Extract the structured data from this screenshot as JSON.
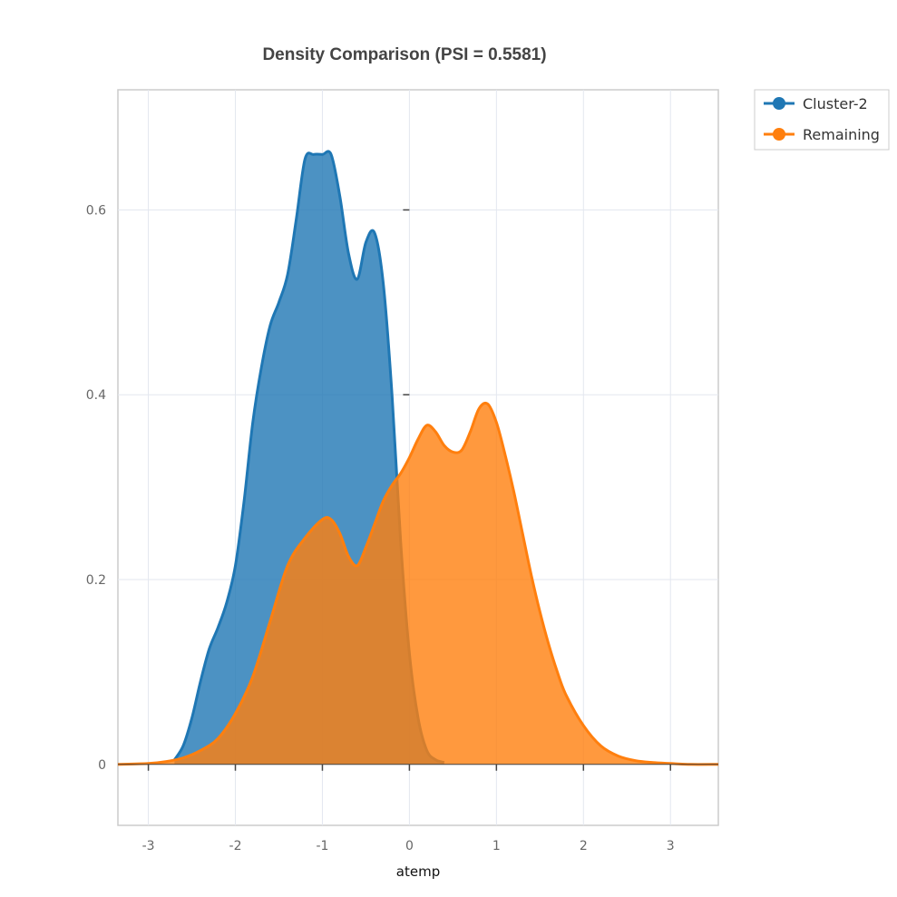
{
  "chart_data": {
    "type": "area",
    "title": "Density Comparison (PSI = 0.5581)",
    "xlabel": "atemp",
    "ylabel": "",
    "xlim": [
      -3.35,
      3.55
    ],
    "ylim": [
      -0.066,
      0.73
    ],
    "x_ticks": [
      -3,
      -2,
      -1,
      0,
      1,
      2,
      3
    ],
    "x_tick_labels": [
      "-3",
      "-2",
      "-1",
      "0",
      "1",
      "2",
      "3"
    ],
    "y_ticks": [
      0,
      0.2,
      0.4,
      0.6
    ],
    "y_tick_labels": [
      "0",
      "0.2",
      "0.4",
      "0.6"
    ],
    "grid": true,
    "legend_position": "outside-top-right",
    "series": [
      {
        "name": "Cluster-2",
        "color": "#1f77b4",
        "x": [
          -2.7,
          -2.6,
          -2.5,
          -2.4,
          -2.3,
          -2.2,
          -2.1,
          -2.0,
          -1.9,
          -1.8,
          -1.7,
          -1.6,
          -1.5,
          -1.4,
          -1.3,
          -1.2,
          -1.1,
          -1.0,
          -0.9,
          -0.8,
          -0.7,
          -0.6,
          -0.5,
          -0.4,
          -0.3,
          -0.2,
          -0.1,
          0.0,
          0.1,
          0.2,
          0.3,
          0.4
        ],
        "y": [
          0.005,
          0.02,
          0.05,
          0.09,
          0.125,
          0.148,
          0.175,
          0.215,
          0.285,
          0.37,
          0.43,
          0.475,
          0.5,
          0.53,
          0.59,
          0.655,
          0.66,
          0.66,
          0.66,
          0.615,
          0.553,
          0.525,
          0.565,
          0.575,
          0.52,
          0.4,
          0.24,
          0.12,
          0.05,
          0.015,
          0.005,
          0.002
        ]
      },
      {
        "name": "Remaining",
        "color": "#ff7f0e",
        "x": [
          -3.35,
          -3.0,
          -2.8,
          -2.6,
          -2.4,
          -2.2,
          -2.0,
          -1.8,
          -1.6,
          -1.4,
          -1.2,
          -1.0,
          -0.9,
          -0.8,
          -0.7,
          -0.6,
          -0.5,
          -0.4,
          -0.3,
          -0.2,
          -0.1,
          0.0,
          0.1,
          0.2,
          0.3,
          0.4,
          0.5,
          0.6,
          0.7,
          0.8,
          0.9,
          1.0,
          1.1,
          1.2,
          1.3,
          1.4,
          1.5,
          1.6,
          1.7,
          1.8,
          2.0,
          2.2,
          2.4,
          2.6,
          2.8,
          3.0,
          3.2,
          3.55
        ],
        "y": [
          0.0,
          0.001,
          0.003,
          0.007,
          0.015,
          0.028,
          0.055,
          0.095,
          0.155,
          0.215,
          0.245,
          0.265,
          0.265,
          0.25,
          0.225,
          0.215,
          0.235,
          0.26,
          0.285,
          0.302,
          0.315,
          0.332,
          0.352,
          0.367,
          0.36,
          0.345,
          0.338,
          0.34,
          0.36,
          0.385,
          0.39,
          0.37,
          0.335,
          0.295,
          0.25,
          0.205,
          0.165,
          0.13,
          0.1,
          0.075,
          0.042,
          0.02,
          0.009,
          0.004,
          0.002,
          0.001,
          0.0,
          0.0
        ]
      }
    ]
  }
}
